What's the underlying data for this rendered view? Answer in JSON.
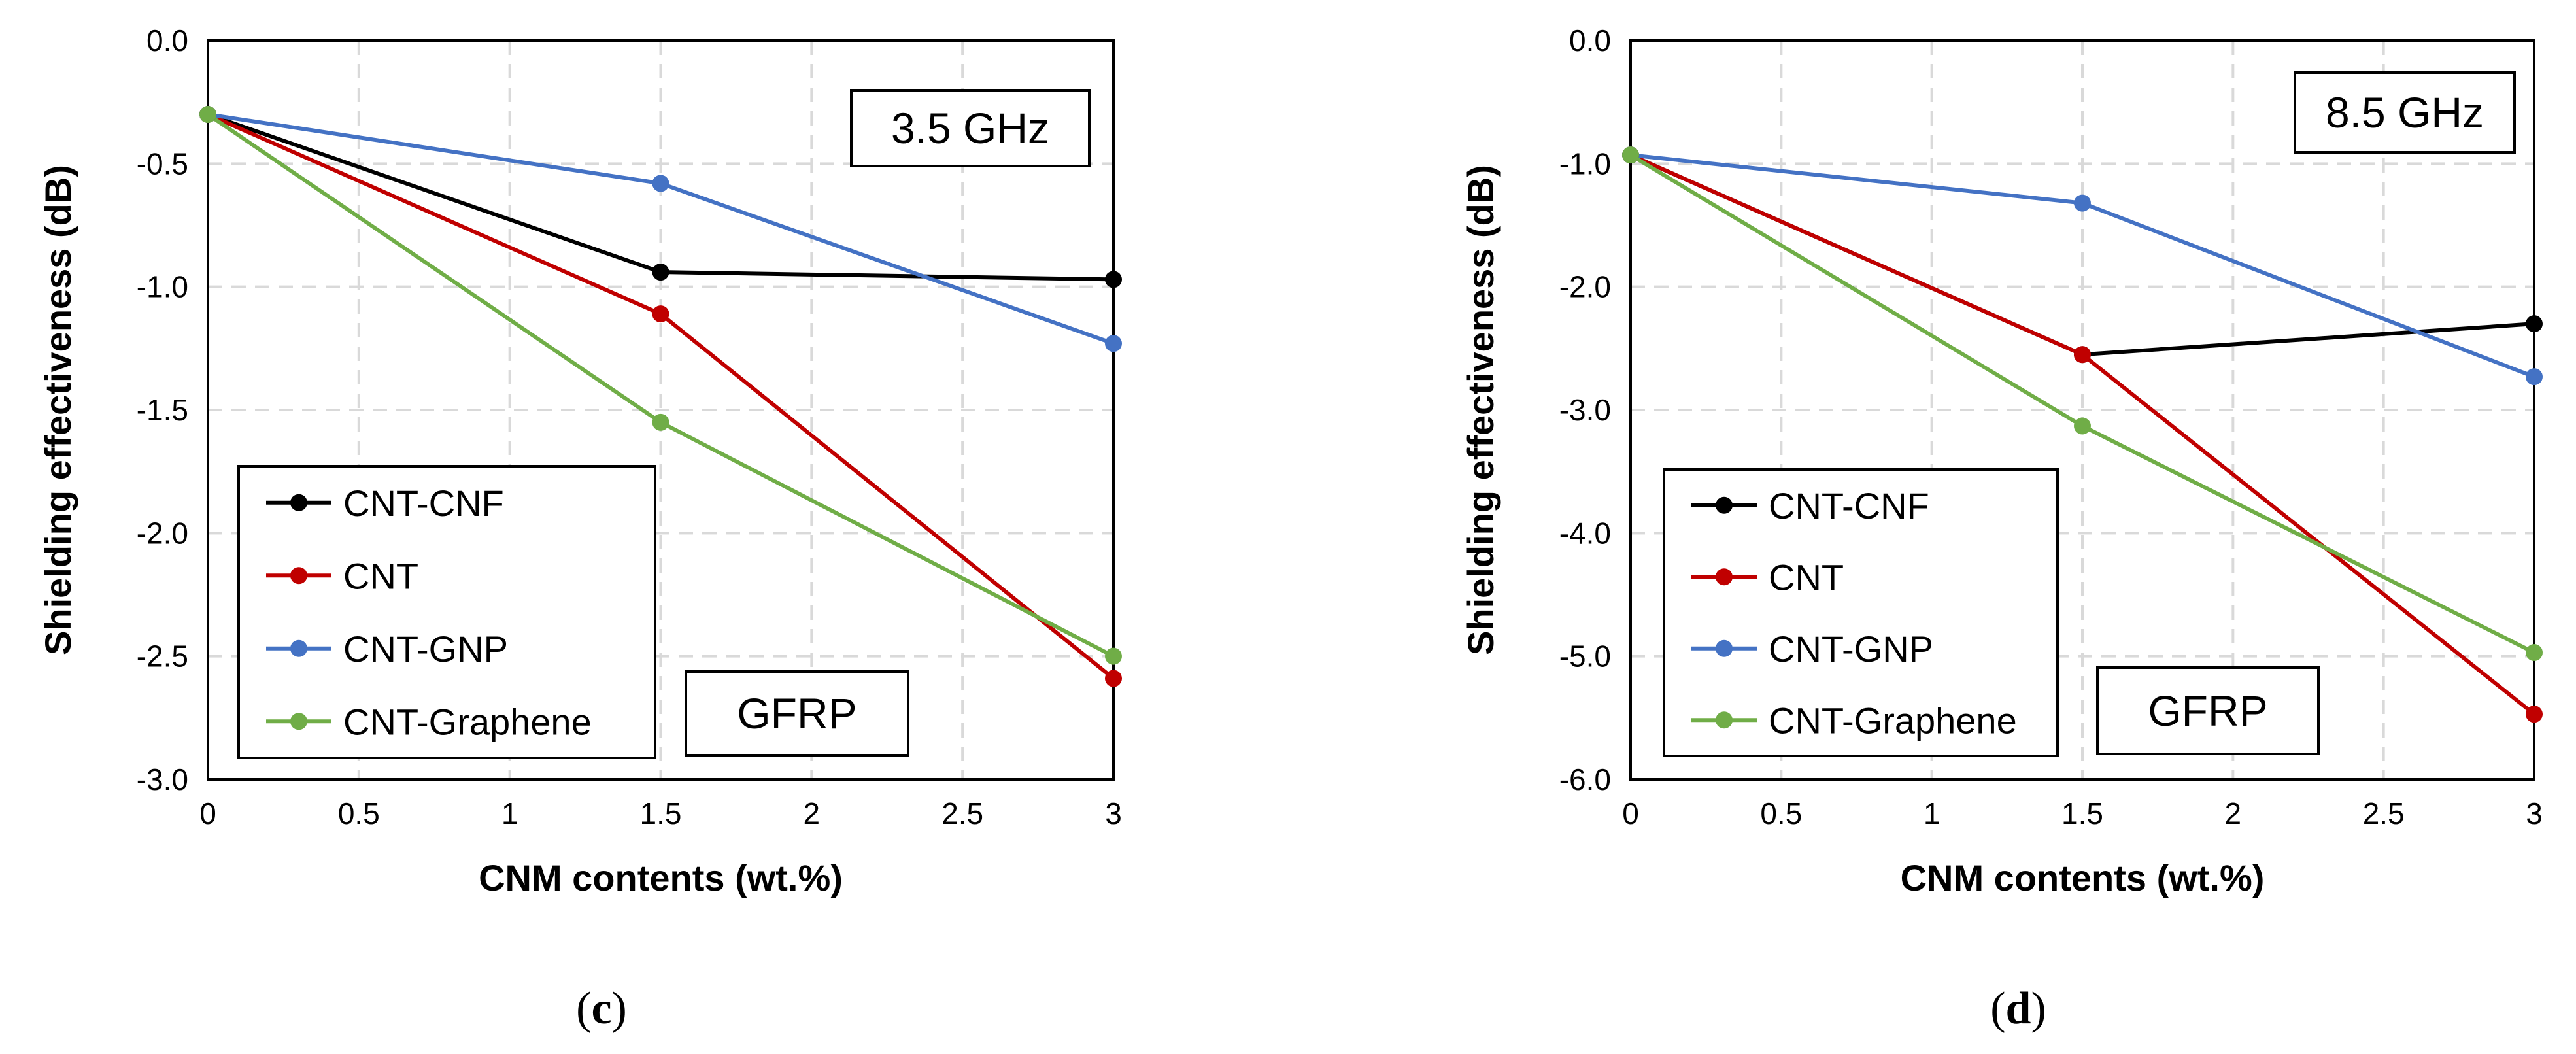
{
  "chart_data": [
    {
      "type": "line",
      "panel_label": "c",
      "xlabel": "CNM contents (wt.%)",
      "ylabel": "Shielding effectiveness (dB)",
      "xlim": [
        0,
        3
      ],
      "ylim": [
        -3.0,
        0.0
      ],
      "xticks": [
        "0",
        "0.5",
        "1",
        "1.5",
        "2",
        "2.5",
        "3"
      ],
      "yticks": [
        "0.0",
        "-0.5",
        "-1.0",
        "-1.5",
        "-2.0",
        "-2.5",
        "-3.0"
      ],
      "grid": true,
      "legend_position": "bottom-left",
      "annotations": [
        "3.5 GHz",
        "GFRP"
      ],
      "x": [
        0,
        1.5,
        3
      ],
      "series": [
        {
          "name": "CNT-CNF",
          "color": "#000000",
          "values": [
            -0.3,
            -0.94,
            -0.97
          ]
        },
        {
          "name": "CNT",
          "color": "#C00000",
          "values": [
            -0.3,
            -1.11,
            -2.59
          ]
        },
        {
          "name": "CNT-GNP",
          "color": "#4472C4",
          "values": [
            -0.3,
            -0.58,
            -1.23
          ]
        },
        {
          "name": "CNT-Graphene",
          "color": "#70AD47",
          "values": [
            -0.3,
            -1.55,
            -2.5
          ]
        }
      ]
    },
    {
      "type": "line",
      "panel_label": "d",
      "xlabel": "CNM contents (wt.%)",
      "ylabel": "Shielding effectiveness (dB)",
      "xlim": [
        0,
        3
      ],
      "ylim": [
        -6.0,
        0.0
      ],
      "xticks": [
        "0",
        "0.5",
        "1",
        "1.5",
        "2",
        "2.5",
        "3"
      ],
      "yticks": [
        "0.0",
        "-1.0",
        "-2.0",
        "-3.0",
        "-4.0",
        "-5.0",
        "-6.0"
      ],
      "grid": true,
      "legend_position": "bottom-left",
      "annotations": [
        "8.5 GHz",
        "GFRP"
      ],
      "x": [
        0,
        1.5,
        3
      ],
      "series": [
        {
          "name": "CNT-CNF",
          "color": "#000000",
          "values": [
            -0.93,
            -2.55,
            -2.3
          ]
        },
        {
          "name": "CNT",
          "color": "#C00000",
          "values": [
            -0.93,
            -2.55,
            -5.47
          ]
        },
        {
          "name": "CNT-GNP",
          "color": "#4472C4",
          "values": [
            -0.93,
            -1.32,
            -2.73
          ]
        },
        {
          "name": "CNT-Graphene",
          "color": "#70AD47",
          "values": [
            -0.93,
            -3.13,
            -4.97
          ]
        }
      ]
    }
  ]
}
